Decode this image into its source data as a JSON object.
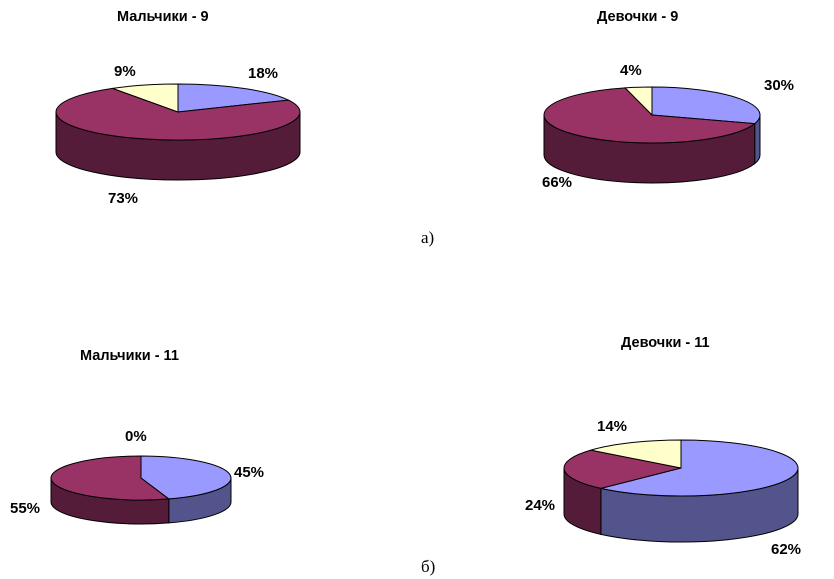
{
  "captions": {
    "top": "а)",
    "bottom": "б)"
  },
  "colors": {
    "slice_a": "#9999ff",
    "slice_b": "#993366",
    "slice_c": "#ffffcc"
  },
  "chart_data": [
    {
      "type": "pie",
      "title": "Мальчики - 9",
      "slices": [
        {
          "label": "18%",
          "value": 18,
          "color": "#9999ff"
        },
        {
          "label": "73%",
          "value": 73,
          "color": "#993366"
        },
        {
          "label": "9%",
          "value": 9,
          "color": "#ffffcc"
        }
      ]
    },
    {
      "type": "pie",
      "title": "Девочки - 9",
      "slices": [
        {
          "label": "30%",
          "value": 30,
          "color": "#9999ff"
        },
        {
          "label": "66%",
          "value": 66,
          "color": "#993366"
        },
        {
          "label": "4%",
          "value": 4,
          "color": "#ffffcc"
        }
      ]
    },
    {
      "type": "pie",
      "title": "Мальчики - 11",
      "slices": [
        {
          "label": "45%",
          "value": 45,
          "color": "#9999ff"
        },
        {
          "label": "55%",
          "value": 55,
          "color": "#993366"
        },
        {
          "label": "0%",
          "value": 0,
          "color": "#ffffcc"
        }
      ]
    },
    {
      "type": "pie",
      "title": "Девочки - 11",
      "slices": [
        {
          "label": "62%",
          "value": 62,
          "color": "#9999ff"
        },
        {
          "label": "24%",
          "value": 24,
          "color": "#993366"
        },
        {
          "label": "14%",
          "value": 14,
          "color": "#ffffcc"
        }
      ]
    }
  ]
}
